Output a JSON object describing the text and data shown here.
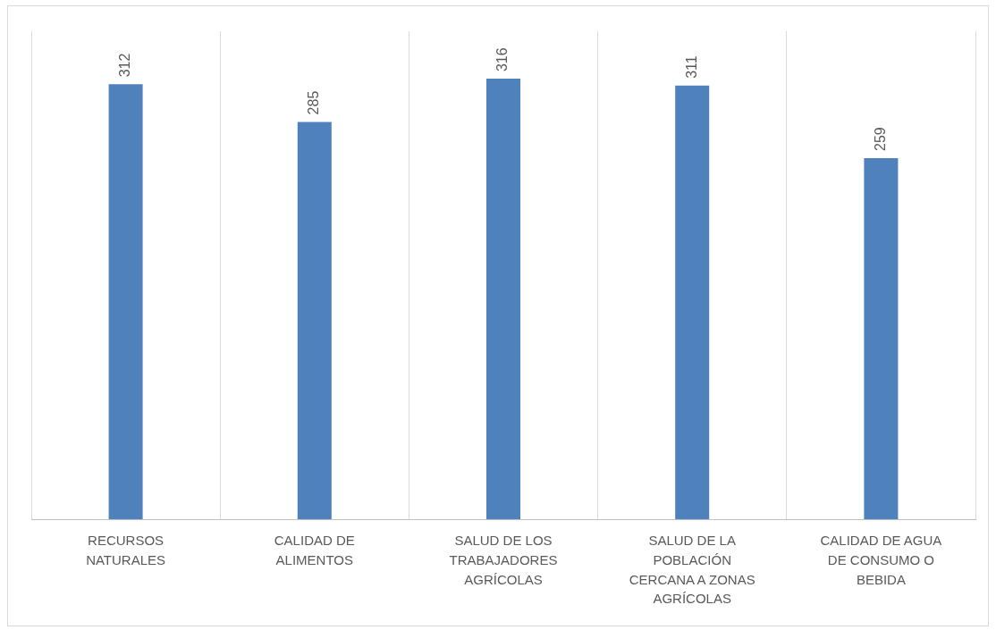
{
  "chart_data": {
    "type": "bar",
    "categories": [
      "RECURSOS NATURALES",
      "CALIDAD DE ALIMENTOS",
      "SALUD DE LOS TRABAJADORES AGRÍCOLAS",
      "SALUD DE LA POBLACIÓN CERCANA A ZONAS AGRÍCOLAS",
      "CALIDAD DE AGUA DE CONSUMO O BEBIDA"
    ],
    "values": [
      312,
      285,
      316,
      311,
      259
    ],
    "color": "#4f81bd",
    "ylim": [
      0,
      350
    ],
    "data_labels": true,
    "grid": "x",
    "legend": false,
    "tick_labels": "x"
  }
}
